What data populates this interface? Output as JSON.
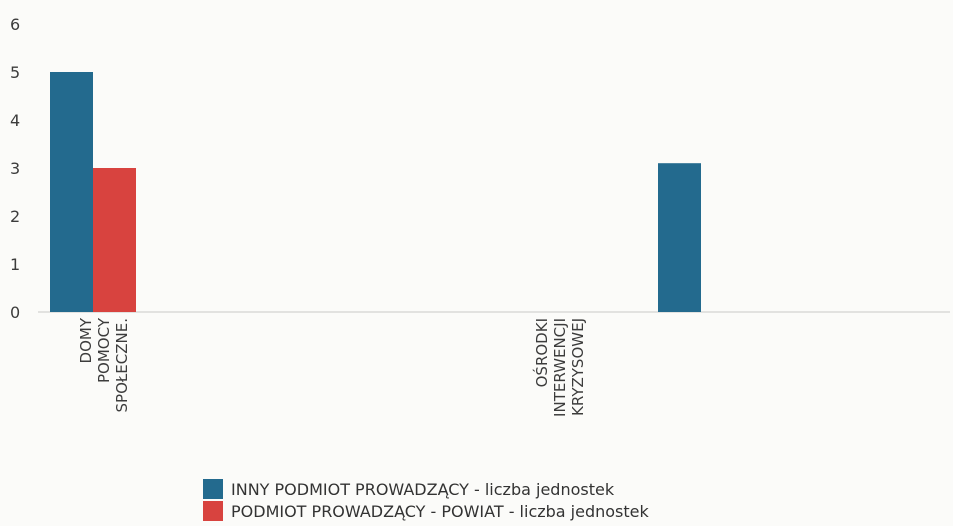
{
  "chart_data": {
    "type": "bar",
    "categories": [
      "DOMY POMOCY SPOŁECZNEJ",
      "",
      "",
      "OŚRODKI INTERWENCJI KRYZYSOWEJ",
      "",
      ""
    ],
    "category_lines": [
      [
        "DOMY",
        "POMOCY",
        "SPOŁECZNE."
      ],
      [],
      [],
      [
        "OŚRODKI",
        "INTERWENCJI",
        "KRYZYSOWEJ"
      ],
      [],
      []
    ],
    "series": [
      {
        "name": "INNY PODMIOT PROWADZĄCY - liczba jednostek",
        "color": "#236a8e",
        "values": [
          5,
          0,
          0,
          0,
          3.1,
          0
        ]
      },
      {
        "name": "PODMIOT PROWADZĄCY - POWIAT - liczba jednostek",
        "color": "#d8433f",
        "values": [
          3,
          0,
          0,
          0,
          0,
          0
        ]
      }
    ],
    "yticks": [
      0,
      1,
      2,
      3,
      4,
      5,
      6
    ],
    "ylim": [
      0,
      6
    ],
    "legend_position": "bottom"
  }
}
